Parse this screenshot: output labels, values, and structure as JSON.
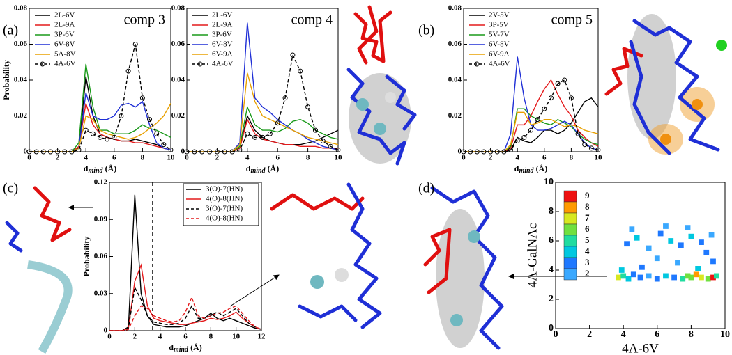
{
  "panel_labels": [
    "(a)",
    "(b)",
    "(c)",
    "(d)"
  ],
  "chart_data": [
    {
      "type": "line",
      "title": "comp 3",
      "legend": "upper left",
      "ylabel": "Probability",
      "xlabel": {
        "base": "d",
        "sub": "mind",
        "rest": " (Å)"
      },
      "x": [
        0,
        0.5,
        1,
        1.5,
        2,
        2.5,
        3,
        3.5,
        4,
        4.5,
        5,
        5.5,
        6,
        6.5,
        7,
        7.5,
        8,
        8.5,
        9,
        9.5,
        10
      ],
      "xlim": [
        0,
        10
      ],
      "xticks": [
        0,
        2,
        4,
        6,
        8,
        10
      ],
      "ylim": [
        0,
        0.08
      ],
      "yticks": [
        0,
        0.02,
        0.04,
        0.06,
        0.08
      ],
      "series": [
        {
          "name": "2L-6V",
          "color": "#000000",
          "values": [
            0,
            0,
            0,
            0,
            0,
            0,
            0,
            0.002,
            0.042,
            0.02,
            0.01,
            0.008,
            0.007,
            0.006,
            0.006,
            0.007,
            0.006,
            0.005,
            0.004,
            0.002,
            0.001
          ]
        },
        {
          "name": "2L-9A",
          "color": "#e41a1c",
          "values": [
            0,
            0,
            0,
            0,
            0,
            0,
            0,
            0.003,
            0.027,
            0.015,
            0.01,
            0.008,
            0.007,
            0.006,
            0.006,
            0.005,
            0.005,
            0.004,
            0.003,
            0.002,
            0.001
          ]
        },
        {
          "name": "3P-6V",
          "color": "#1a9a1a",
          "values": [
            0,
            0,
            0,
            0,
            0,
            0,
            0,
            0.005,
            0.049,
            0.025,
            0.012,
            0.012,
            0.01,
            0.01,
            0.01,
            0.012,
            0.015,
            0.013,
            0.012,
            0.01,
            0.008
          ]
        },
        {
          "name": "6V-8V",
          "color": "#1f2fd6",
          "values": [
            0,
            0,
            0,
            0,
            0,
            0,
            0,
            0.002,
            0.033,
            0.02,
            0.018,
            0.018,
            0.02,
            0.026,
            0.027,
            0.025,
            0.028,
            0.015,
            0.005,
            0.002,
            0.001
          ]
        },
        {
          "name": "5A-8V",
          "color": "#e8a000",
          "values": [
            0,
            0,
            0,
            0,
            0,
            0,
            0,
            0.002,
            0.02,
            0.018,
            0.012,
            0.01,
            0.009,
            0.008,
            0.007,
            0.008,
            0.01,
            0.013,
            0.016,
            0.02,
            0.027
          ]
        },
        {
          "name": "4A-6V",
          "color": "#000000",
          "dash": true,
          "marker": "circle",
          "values": [
            0,
            0,
            0,
            0,
            0,
            0,
            0,
            0.001,
            0.012,
            0.01,
            0.008,
            0.007,
            0.008,
            0.02,
            0.045,
            0.06,
            0.03,
            0.018,
            0.01,
            0.004,
            0.001
          ]
        }
      ]
    },
    {
      "type": "line",
      "title": "comp 4",
      "legend": "upper left",
      "xlabel": {
        "base": "d",
        "sub": "mind",
        "rest": " (Å)"
      },
      "x": [
        0,
        0.5,
        1,
        1.5,
        2,
        2.5,
        3,
        3.5,
        4,
        4.5,
        5,
        5.5,
        6,
        6.5,
        7,
        7.5,
        8,
        8.5,
        9,
        9.5,
        10
      ],
      "xlim": [
        0,
        10
      ],
      "xticks": [
        0,
        2,
        4,
        6,
        8,
        10
      ],
      "ylim": [
        0,
        0.08
      ],
      "yticks": [
        0,
        0.02,
        0.04,
        0.06,
        0.08
      ],
      "series": [
        {
          "name": "2L-6V",
          "color": "#000000",
          "values": [
            0,
            0,
            0,
            0,
            0,
            0,
            0,
            0.002,
            0.02,
            0.012,
            0.008,
            0.006,
            0.005,
            0.004,
            0.004,
            0.004,
            0.005,
            0.006,
            0.008,
            0.01,
            0.012
          ]
        },
        {
          "name": "2L-9A",
          "color": "#e41a1c",
          "values": [
            0,
            0,
            0,
            0,
            0,
            0,
            0,
            0.002,
            0.018,
            0.01,
            0.007,
            0.006,
            0.005,
            0.004,
            0.004,
            0.003,
            0.003,
            0.003,
            0.002,
            0.002,
            0.002
          ]
        },
        {
          "name": "3P-6V",
          "color": "#1a9a1a",
          "values": [
            0,
            0,
            0,
            0,
            0,
            0,
            0,
            0.003,
            0.025,
            0.015,
            0.012,
            0.012,
            0.011,
            0.013,
            0.017,
            0.018,
            0.016,
            0.012,
            0.01,
            0.008,
            0.007
          ]
        },
        {
          "name": "6V-8V",
          "color": "#1f2fd6",
          "values": [
            0,
            0,
            0,
            0,
            0,
            0,
            0,
            0.005,
            0.072,
            0.03,
            0.025,
            0.022,
            0.018,
            0.015,
            0.012,
            0.01,
            0.007,
            0.005,
            0.003,
            0.002,
            0.001
          ]
        },
        {
          "name": "6V-9A",
          "color": "#e8a000",
          "values": [
            0,
            0,
            0,
            0,
            0,
            0,
            0,
            0.004,
            0.044,
            0.028,
            0.02,
            0.018,
            0.016,
            0.014,
            0.012,
            0.01,
            0.008,
            0.007,
            0.006,
            0.005,
            0.004
          ]
        },
        {
          "name": "4A-6V",
          "color": "#000000",
          "dash": true,
          "marker": "circle",
          "values": [
            0,
            0,
            0,
            0,
            0,
            0,
            0,
            0.001,
            0.01,
            0.008,
            0.008,
            0.01,
            0.016,
            0.03,
            0.054,
            0.045,
            0.025,
            0.012,
            0.006,
            0.003,
            0.001
          ]
        }
      ]
    },
    {
      "type": "line",
      "title": "comp 5",
      "legend": "upper left",
      "xlabel": {
        "base": "d",
        "sub": "mind",
        "rest": " (Å)"
      },
      "x": [
        0,
        0.5,
        1,
        1.5,
        2,
        2.5,
        3,
        3.5,
        4,
        4.5,
        5,
        5.5,
        6,
        6.5,
        7,
        7.5,
        8,
        8.5,
        9,
        9.5,
        10
      ],
      "xlim": [
        0,
        10
      ],
      "xticks": [
        0,
        2,
        4,
        6,
        8,
        10
      ],
      "ylim": [
        0,
        0.08
      ],
      "yticks": [
        0,
        0.02,
        0.04,
        0.06,
        0.08
      ],
      "series": [
        {
          "name": "2V-5V",
          "color": "#000000",
          "values": [
            0,
            0,
            0,
            0,
            0,
            0,
            0,
            0.001,
            0.008,
            0.006,
            0.005,
            0.008,
            0.012,
            0.012,
            0.01,
            0.012,
            0.016,
            0.022,
            0.028,
            0.03,
            0.025
          ]
        },
        {
          "name": "3P-5V",
          "color": "#e41a1c",
          "values": [
            0,
            0,
            0,
            0,
            0,
            0,
            0,
            0.002,
            0.015,
            0.015,
            0.02,
            0.028,
            0.035,
            0.04,
            0.032,
            0.025,
            0.02,
            0.012,
            0.008,
            0.005,
            0.003
          ]
        },
        {
          "name": "5V-7V",
          "color": "#1a9a1a",
          "values": [
            0,
            0,
            0,
            0,
            0,
            0,
            0,
            0.003,
            0.024,
            0.024,
            0.02,
            0.018,
            0.016,
            0.015,
            0.018,
            0.016,
            0.014,
            0.01,
            0.007,
            0.005,
            0.004
          ]
        },
        {
          "name": "6V-8V",
          "color": "#1f2fd6",
          "values": [
            0,
            0,
            0,
            0,
            0,
            0,
            0,
            0.01,
            0.053,
            0.03,
            0.015,
            0.012,
            0.012,
            0.013,
            0.015,
            0.017,
            0.015,
            0.01,
            0.005,
            0.002,
            0.001
          ]
        },
        {
          "name": "6V-9A",
          "color": "#e8a000",
          "values": [
            0,
            0,
            0,
            0,
            0,
            0,
            0,
            0.004,
            0.022,
            0.022,
            0.015,
            0.016,
            0.018,
            0.018,
            0.016,
            0.014,
            0.015,
            0.014,
            0.012,
            0.011,
            0.01
          ]
        },
        {
          "name": "4A-6V",
          "color": "#000000",
          "dash": true,
          "marker": "circle",
          "values": [
            0,
            0,
            0,
            0,
            0,
            0,
            0,
            0.001,
            0.006,
            0.008,
            0.012,
            0.018,
            0.024,
            0.03,
            0.038,
            0.04,
            0.03,
            0.01,
            0.004,
            0.002,
            0.001
          ]
        }
      ]
    },
    {
      "type": "line",
      "legend": "upper right",
      "legend_box": true,
      "vline": 3.4,
      "ylabel": "Probability",
      "xlabel": {
        "base": "d",
        "sub": "mind",
        "rest": " (Å)"
      },
      "x": [
        0,
        0.5,
        1,
        1.5,
        2,
        2.5,
        3,
        3.5,
        4,
        4.5,
        5,
        5.5,
        6,
        6.5,
        7,
        7.5,
        8,
        8.5,
        9,
        9.5,
        10,
        10.5,
        11,
        11.5,
        12
      ],
      "xlim": [
        0,
        12
      ],
      "xticks": [
        0,
        2,
        4,
        6,
        8,
        10,
        12
      ],
      "ylim": [
        0,
        0.12
      ],
      "yticks": [
        0,
        0.03,
        0.06,
        0.09,
        0.12
      ],
      "series": [
        {
          "name": "3(O)-7(HN)",
          "color": "#000000",
          "values": [
            0,
            0,
            0,
            0.003,
            0.11,
            0.03,
            0.012,
            0.005,
            0.004,
            0.003,
            0.003,
            0.003,
            0.004,
            0.006,
            0.008,
            0.01,
            0.014,
            0.01,
            0.008,
            0.01,
            0.008,
            0.006,
            0.004,
            0.002,
            0.001
          ]
        },
        {
          "name": "4(O)-8(HN)",
          "color": "#e41a1c",
          "values": [
            0,
            0,
            0,
            0.002,
            0.04,
            0.053,
            0.02,
            0.01,
            0.008,
            0.007,
            0.006,
            0.005,
            0.005,
            0.006,
            0.007,
            0.008,
            0.01,
            0.009,
            0.01,
            0.012,
            0.015,
            0.01,
            0.006,
            0.003,
            0.001
          ]
        },
        {
          "name": "3(O)-7(HN)",
          "color": "#000000",
          "dash": true,
          "values": [
            0,
            0,
            0,
            0.002,
            0.035,
            0.025,
            0.012,
            0.007,
            0.006,
            0.005,
            0.005,
            0.006,
            0.01,
            0.02,
            0.01,
            0.01,
            0.012,
            0.015,
            0.012,
            0.015,
            0.018,
            0.012,
            0.006,
            0.003,
            0.001
          ]
        },
        {
          "name": "4(O)-8(HN)",
          "color": "#e41a1c",
          "dash": true,
          "values": [
            0,
            0,
            0,
            0.001,
            0.012,
            0.02,
            0.018,
            0.012,
            0.01,
            0.008,
            0.007,
            0.008,
            0.015,
            0.027,
            0.012,
            0.01,
            0.012,
            0.014,
            0.015,
            0.018,
            0.02,
            0.014,
            0.008,
            0.003,
            0.001
          ]
        }
      ]
    },
    {
      "type": "heatmap",
      "xlabel": "4A-6V",
      "ylabel": "4A-GalNAc",
      "xlim": [
        0,
        10
      ],
      "xticks": [
        0,
        2,
        4,
        6,
        8,
        10
      ],
      "ylim": [
        0,
        10
      ],
      "yticks": [
        0,
        2,
        4,
        6,
        8,
        10
      ],
      "colorbar": {
        "levels": [
          2,
          3,
          4,
          5,
          6,
          7,
          8,
          9
        ],
        "colors": [
          "#3aa8ff",
          "#1e78ff",
          "#00c8e0",
          "#20dca0",
          "#70e040",
          "#d8e820",
          "#ff9a00",
          "#ee1111"
        ]
      },
      "x": [
        3.7,
        4.0,
        4.3,
        4.6,
        5.0,
        5.5,
        6.0,
        6.5,
        7.0,
        7.5,
        7.8,
        8.0,
        8.3,
        8.6,
        9.0,
        9.3,
        9.5,
        4.2,
        4.8,
        5.5,
        6.2,
        6.8,
        7.4,
        8.0,
        8.6,
        9.2,
        3.9,
        5.1,
        6.0,
        7.2,
        8.4,
        9.3,
        4.5,
        6.5,
        7.8,
        8.9
      ],
      "y": [
        3.5,
        3.6,
        3.4,
        3.7,
        3.5,
        3.6,
        3.4,
        3.6,
        3.5,
        3.4,
        3.6,
        3.5,
        3.7,
        3.5,
        3.4,
        3.5,
        3.6,
        5.8,
        6.2,
        5.5,
        6.5,
        6.0,
        5.7,
        6.3,
        5.9,
        6.4,
        4.0,
        4.2,
        4.8,
        4.5,
        4.1,
        4.6,
        6.8,
        7.0,
        6.9,
        5.2
      ],
      "values": [
        7,
        5,
        4,
        3,
        3,
        2,
        3,
        4,
        3,
        5,
        6,
        6,
        8,
        7,
        6,
        9,
        5,
        3,
        4,
        2,
        3,
        4,
        3,
        4,
        3,
        2,
        4,
        3,
        2,
        2,
        4,
        3,
        2,
        2,
        2,
        3
      ]
    }
  ]
}
